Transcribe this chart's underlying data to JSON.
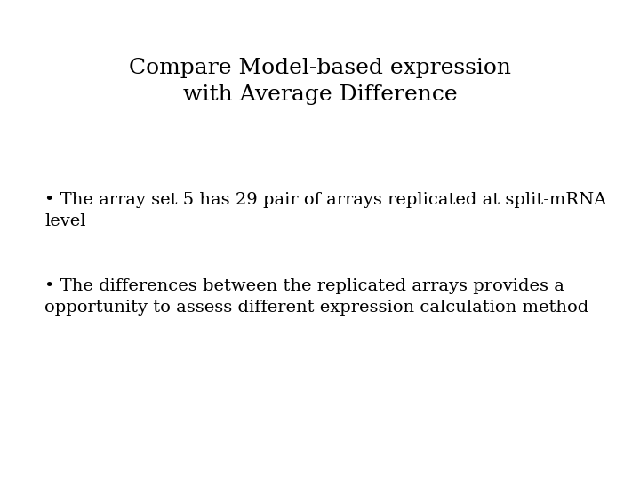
{
  "title_line1": "Compare Model-based expression",
  "title_line2": "with Average Difference",
  "bullet1_line1": "• The array set 5 has 29 pair of arrays replicated at split-mRNA",
  "bullet1_line2": "level",
  "bullet2_line1": "• The differences between the replicated arrays provides a",
  "bullet2_line2": "opportunity to assess different expression calculation method",
  "background_color": "#ffffff",
  "text_color": "#000000",
  "title_fontsize": 18,
  "body_fontsize": 14,
  "title_font": "DejaVu Serif",
  "body_font": "DejaVu Serif"
}
